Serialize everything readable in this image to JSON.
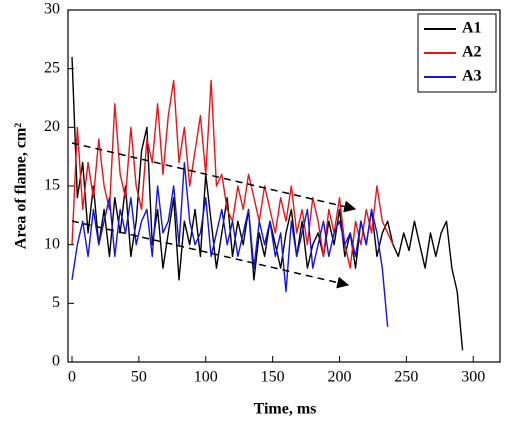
{
  "chart_data": {
    "type": "line",
    "x_label": "Time, ms",
    "y_label": "Area of flame, cm²",
    "x": [
      0,
      4,
      8,
      12,
      16,
      20,
      24,
      28,
      32,
      36,
      40,
      44,
      48,
      52,
      56,
      60,
      64,
      68,
      72,
      76,
      80,
      84,
      88,
      92,
      96,
      100,
      104,
      108,
      112,
      116,
      120,
      124,
      128,
      132,
      136,
      140,
      144,
      148,
      152,
      156,
      160,
      164,
      168,
      172,
      176,
      180,
      184,
      188,
      192,
      196,
      200,
      204,
      208,
      212,
      216,
      220,
      224,
      228,
      232,
      236,
      240,
      244,
      248,
      252,
      256,
      260,
      264,
      268,
      272,
      276,
      280,
      284,
      288,
      292
    ],
    "series": [
      {
        "name": "A1",
        "color": "#000000",
        "values": [
          26,
          14,
          17,
          11,
          15,
          10,
          13,
          9,
          14,
          11,
          15,
          9,
          12,
          18,
          20,
          10,
          13,
          8,
          11,
          14,
          7,
          12,
          10,
          13,
          9,
          16,
          12,
          8,
          11,
          14,
          9,
          12,
          10,
          13,
          7,
          11,
          9,
          12,
          10,
          8,
          11,
          13,
          9,
          12,
          8,
          10,
          11,
          9,
          12,
          10,
          13,
          9,
          11,
          8,
          12,
          10,
          13,
          9,
          11,
          12,
          10,
          9,
          11,
          9.5,
          12,
          10,
          8,
          11,
          9,
          11,
          12,
          8,
          6,
          1
        ]
      },
      {
        "name": "A2",
        "color": "#e8141a",
        "values": [
          10,
          20,
          13,
          17,
          14,
          19,
          15,
          13,
          22,
          16,
          14,
          20,
          15,
          13,
          19,
          17,
          22,
          16,
          21,
          24,
          17,
          20,
          15,
          18,
          21,
          16,
          24,
          15,
          16,
          13,
          12,
          15,
          13,
          16,
          14,
          12,
          15,
          13,
          11,
          14,
          12,
          15,
          11,
          13,
          10,
          14,
          12,
          9,
          13,
          11,
          14,
          10,
          8,
          12,
          10,
          13,
          11,
          15,
          12,
          11,
          10,
          null,
          null,
          null,
          null,
          null,
          null,
          null,
          null,
          null,
          null,
          null,
          null,
          null
        ]
      },
      {
        "name": "A3",
        "color": "#1414e0",
        "values": [
          7,
          10,
          12,
          9,
          13,
          10,
          12,
          14,
          9,
          13,
          11,
          14,
          10,
          12,
          13,
          9,
          15,
          11,
          12,
          15,
          10,
          17,
          12,
          10,
          11,
          14,
          9,
          11,
          13,
          10,
          12,
          9,
          11,
          13,
          8,
          12,
          10,
          12,
          9,
          11,
          6,
          12,
          9,
          11,
          13,
          8,
          10,
          12,
          9,
          11,
          12,
          10,
          11,
          9,
          12,
          10,
          13,
          11,
          8,
          3,
          null,
          null,
          null,
          null,
          null,
          null,
          null,
          null,
          null,
          null,
          null,
          null,
          null,
          null
        ]
      }
    ],
    "xlim": [
      -3,
      320
    ],
    "ylim": [
      0,
      30
    ],
    "xticks": [
      0,
      50,
      100,
      150,
      200,
      250,
      300
    ],
    "yticks": [
      0,
      5,
      10,
      15,
      20,
      25,
      30
    ],
    "legend": "upper right"
  }
}
